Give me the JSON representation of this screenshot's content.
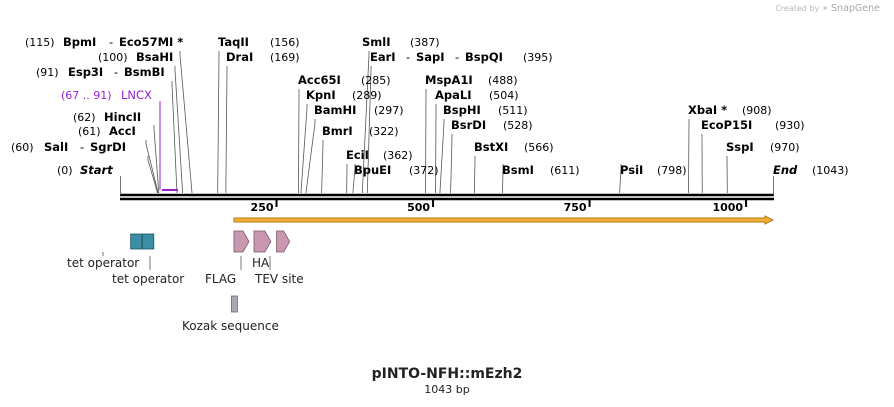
{
  "credit": {
    "prefix": "Created by",
    "brand": "SnapGene"
  },
  "title": "pINTO-NFH::mEzh2",
  "length_label": "1043 bp",
  "sequence": {
    "start_label": "Start",
    "start_pos": "(0)",
    "end_label": "End",
    "end_pos": "(1043)",
    "length": 1043
  },
  "ticks": [
    "250",
    "500",
    "750",
    "1000"
  ],
  "sites": [
    {
      "name": "SalI",
      "alt": "SgrDI",
      "pos": "(60)",
      "bp": 60
    },
    {
      "name": "AccI",
      "pos": "(61)",
      "bp": 61
    },
    {
      "name": "HincII",
      "pos": "(62)",
      "bp": 62
    },
    {
      "name": "Esp3I",
      "alt": "BsmBI",
      "pos": "(91)",
      "bp": 91
    },
    {
      "name": "BsaHI",
      "pos": "(100)",
      "bp": 100
    },
    {
      "name": "BpmI",
      "alt": "Eco57MI *",
      "pos": "(115)",
      "bp": 115
    },
    {
      "name": "TaqII",
      "pos": "(156)",
      "bp": 156
    },
    {
      "name": "DraI",
      "pos": "(169)",
      "bp": 169
    },
    {
      "name": "Acc65I",
      "pos": "(285)",
      "bp": 285
    },
    {
      "name": "KpnI",
      "pos": "(289)",
      "bp": 289
    },
    {
      "name": "BamHI",
      "pos": "(297)",
      "bp": 297
    },
    {
      "name": "BmrI",
      "pos": "(322)",
      "bp": 322
    },
    {
      "name": "EciI",
      "pos": "(362)",
      "bp": 362
    },
    {
      "name": "BpuEI",
      "pos": "(372)",
      "bp": 372
    },
    {
      "name": "SmlI",
      "pos": "(387)",
      "bp": 387
    },
    {
      "name": "EarI",
      "alt": "SapI",
      "alt2": "BspQI",
      "pos": "(395)",
      "bp": 395
    },
    {
      "name": "MspA1I",
      "pos": "(488)",
      "bp": 488
    },
    {
      "name": "ApaLI",
      "pos": "(504)",
      "bp": 504
    },
    {
      "name": "BspHI",
      "pos": "(511)",
      "bp": 511
    },
    {
      "name": "BsrDI",
      "pos": "(528)",
      "bp": 528
    },
    {
      "name": "BstXI",
      "pos": "(566)",
      "bp": 566
    },
    {
      "name": "BsmI",
      "pos": "(611)",
      "bp": 611
    },
    {
      "name": "PsiI",
      "pos": "(798)",
      "bp": 798
    },
    {
      "name": "XbaI *",
      "pos": "(908)",
      "bp": 908
    },
    {
      "name": "EcoP15I",
      "pos": "(930)",
      "bp": 930
    },
    {
      "name": "SspI",
      "pos": "(970)",
      "bp": 970
    }
  ],
  "primer": {
    "range": "(67 .. 91)",
    "name": "LNCX",
    "start": 67,
    "end": 91,
    "color": "#9a1fd0"
  },
  "orf": {
    "start": 182,
    "end": 1043,
    "color": "#f0b13a",
    "edge": "#b77a12"
  },
  "features": [
    {
      "name": "tet operator",
      "kind": "box",
      "color": "#3b8ea5",
      "start": 17,
      "end": 35
    },
    {
      "name": "tet operator",
      "kind": "box",
      "color": "#3b8ea5",
      "start": 36,
      "end": 54
    },
    {
      "name": "FLAG",
      "kind": "arrow",
      "color": "#c898b0",
      "start": 182,
      "end": 206
    },
    {
      "name": "HA",
      "kind": "arrow",
      "color": "#c898b0",
      "start": 214,
      "end": 241
    },
    {
      "name": "TEV site",
      "kind": "arrow",
      "color": "#c898b0",
      "start": 250,
      "end": 271
    },
    {
      "name": "Kozak sequence",
      "kind": "box",
      "color": "#a9a9b5",
      "start": 178,
      "end": 183
    }
  ]
}
